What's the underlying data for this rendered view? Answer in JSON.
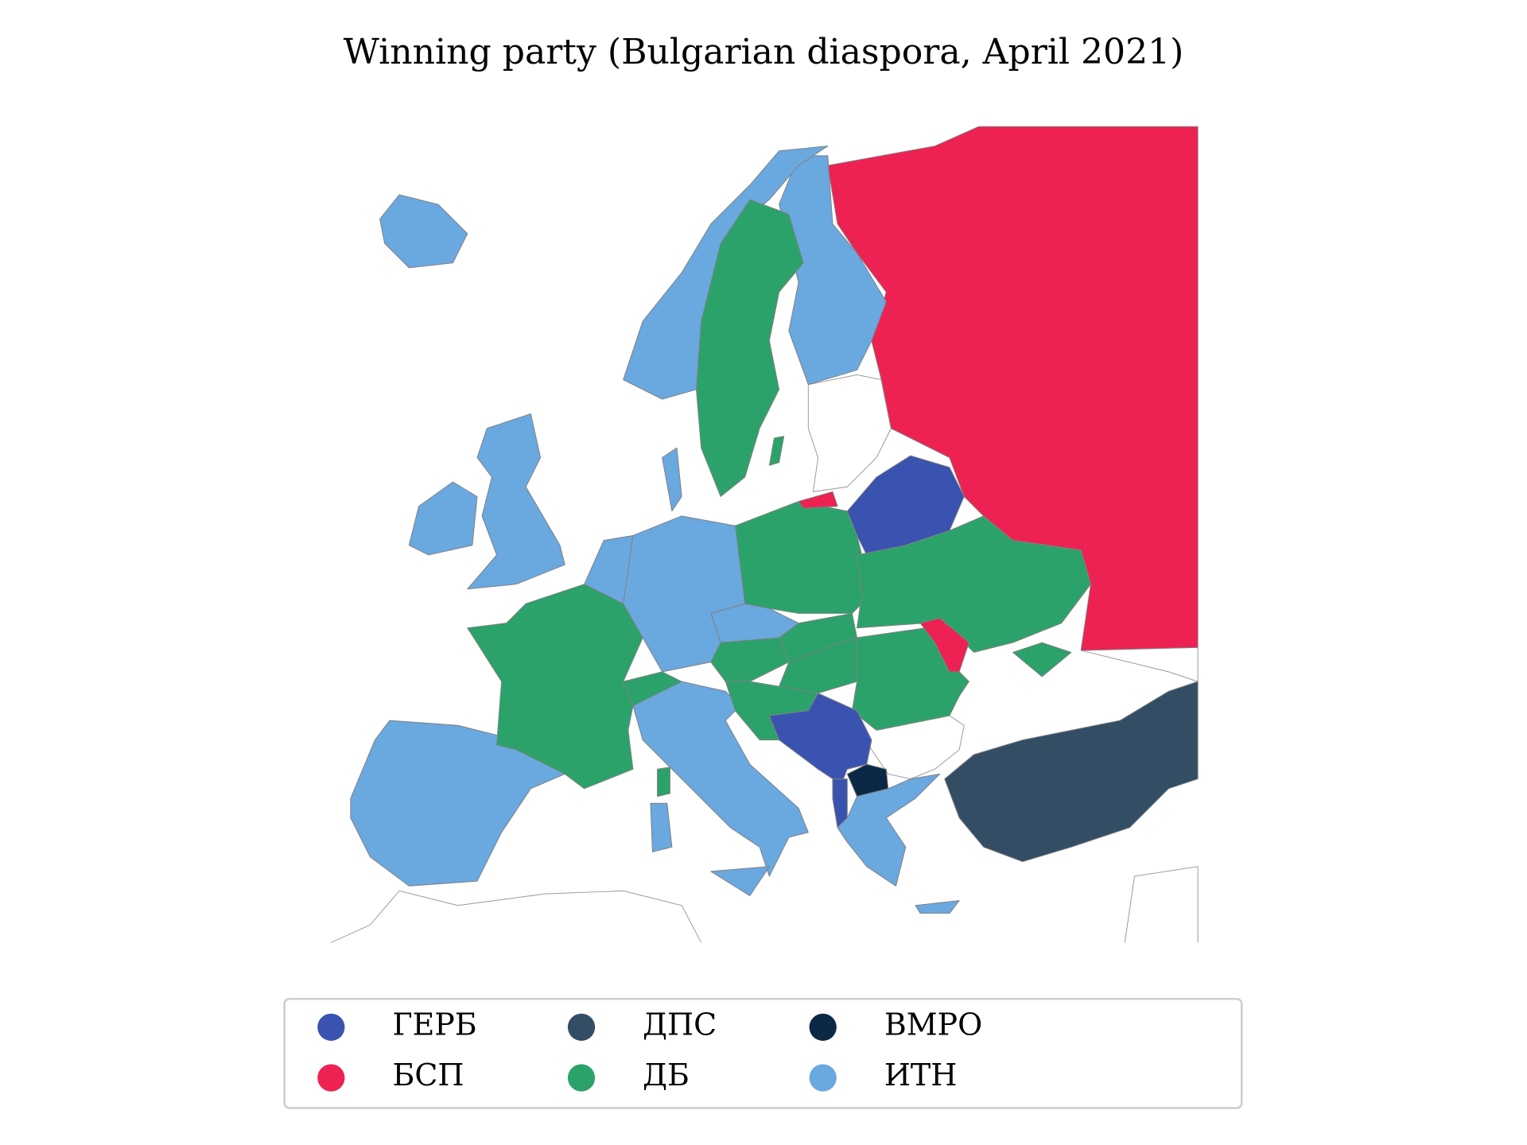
{
  "title": "Winning party (Bulgarian diaspora, April 2021)",
  "legend": {
    "items": [
      {
        "name": "ГЕРБ",
        "color": "#3a53b0"
      },
      {
        "name": "БСП",
        "color": "#ee2153"
      },
      {
        "name": "ДПС",
        "color": "#334e64"
      },
      {
        "name": "ДБ",
        "color": "#2ca26b"
      },
      {
        "name": "ВМРО",
        "color": "#0b2845"
      },
      {
        "name": "ИТН",
        "color": "#6aa8e0"
      }
    ]
  }
}
